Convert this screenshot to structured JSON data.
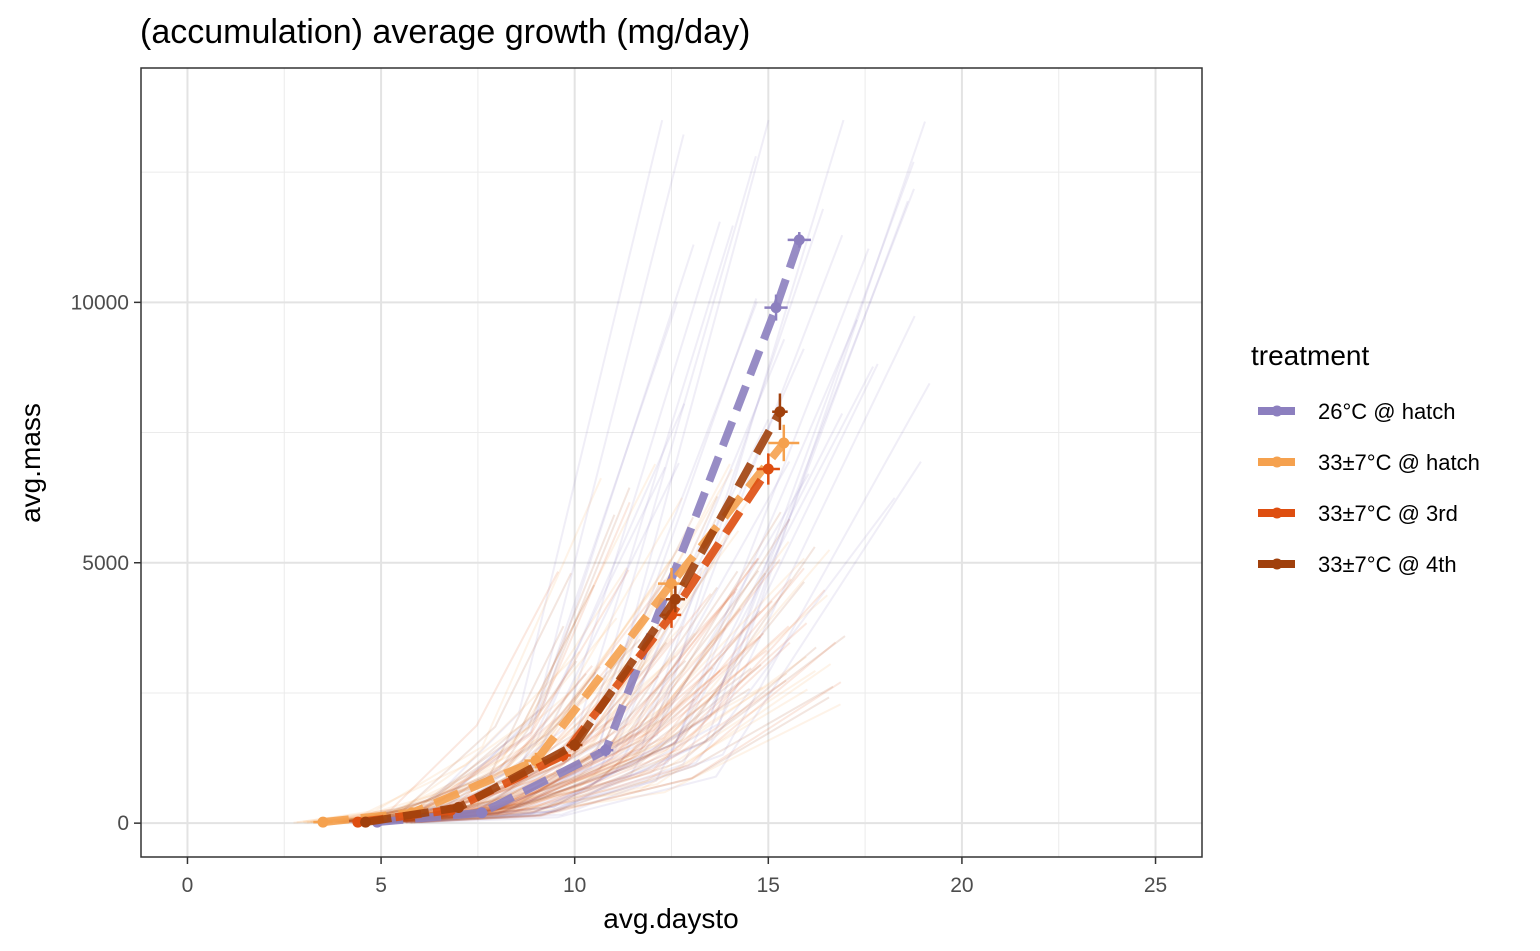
{
  "chart_data": {
    "type": "line",
    "title": "(accumulation) average growth (mg/day)",
    "xlabel": "avg.daysto",
    "ylabel": "avg.mass",
    "xlim": [
      -1.2,
      26.2
    ],
    "ylim": [
      -650,
      14500
    ],
    "x_ticks": [
      0,
      5,
      10,
      15,
      20,
      25
    ],
    "y_ticks": [
      0,
      5000,
      10000
    ],
    "x_tick_labels": [
      "0",
      "5",
      "10",
      "15",
      "20",
      "25"
    ],
    "y_tick_labels": [
      "0",
      "5000",
      "10000"
    ],
    "grid": true,
    "legend": {
      "title": "treatment",
      "position": "right"
    },
    "series": [
      {
        "name": "26°C @ hatch",
        "color": "#8c7fbf",
        "x": [
          4.9,
          7.6,
          10.8,
          15.2,
          15.8
        ],
        "y": [
          20,
          200,
          1400,
          9900,
          11200
        ],
        "x_err": [
          0.1,
          0.15,
          0.2,
          0.3,
          0.3
        ],
        "y_err": [
          10,
          40,
          120,
          250,
          150
        ]
      },
      {
        "name": "33±7°C @ hatch",
        "color": "#f5a14e",
        "x": [
          3.5,
          5.8,
          9.0,
          12.5,
          15.4
        ],
        "y": [
          20,
          200,
          1200,
          4600,
          7300
        ],
        "x_err": [
          0.25,
          0.25,
          0.3,
          0.35,
          0.4
        ],
        "y_err": [
          15,
          40,
          150,
          300,
          350
        ]
      },
      {
        "name": "33±7°C @ 3rd",
        "color": "#de4e10",
        "x": [
          4.4,
          6.8,
          9.7,
          12.5,
          15.0
        ],
        "y": [
          20,
          250,
          1300,
          4000,
          6800
        ],
        "x_err": [
          0.1,
          0.15,
          0.2,
          0.25,
          0.3
        ],
        "y_err": [
          10,
          40,
          120,
          250,
          300
        ]
      },
      {
        "name": "33±7°C @ 4th",
        "color": "#a0400c",
        "x": [
          4.6,
          7.0,
          10.0,
          12.6,
          15.3
        ],
        "y": [
          20,
          300,
          1500,
          4300,
          7900
        ],
        "x_err": [
          0.1,
          0.15,
          0.2,
          0.25,
          0.2
        ],
        "y_err": [
          10,
          40,
          120,
          250,
          350
        ]
      }
    ]
  }
}
